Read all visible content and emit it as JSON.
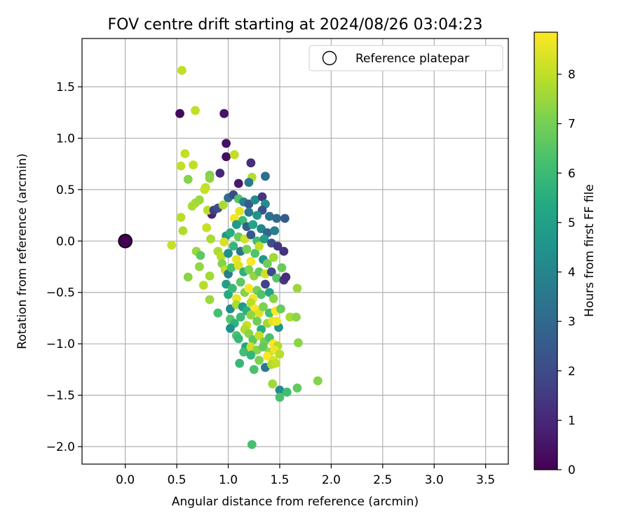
{
  "chart_data": {
    "type": "scatter",
    "title": "FOV centre drift starting at 2024/08/26 03:04:23",
    "xlabel": "Angular distance from reference (arcmin)",
    "ylabel": "Rotation from reference (arcmin)",
    "xlim": [
      -0.42,
      3.72
    ],
    "ylim": [
      -2.17,
      1.97
    ],
    "xticks": [
      0.0,
      0.5,
      1.0,
      1.5,
      2.0,
      2.5,
      3.0,
      3.5
    ],
    "xtick_labels": [
      "0.0",
      "0.5",
      "1.0",
      "1.5",
      "2.0",
      "2.5",
      "3.0",
      "3.5"
    ],
    "yticks": [
      -2.0,
      -1.5,
      -1.0,
      -0.5,
      0.0,
      0.5,
      1.0,
      1.5
    ],
    "ytick_labels": [
      "−2.0",
      "−1.5",
      "−1.0",
      "−0.5",
      "0.0",
      "0.5",
      "1.0",
      "1.5"
    ],
    "grid": true,
    "legend": {
      "position": "top-right",
      "label": "Reference platepar"
    },
    "reference_point": {
      "x": 0.0,
      "y": 0.0
    },
    "colorbar": {
      "label": "Hours from first FF file",
      "min": 0,
      "max": 8.85,
      "ticks": [
        0,
        1,
        2,
        3,
        4,
        5,
        6,
        7,
        8
      ],
      "tick_labels": [
        "0",
        "1",
        "2",
        "3",
        "4",
        "5",
        "6",
        "7",
        "8"
      ],
      "colormap": "viridis"
    },
    "points": [
      {
        "x": 0.55,
        "y": 1.66,
        "h": 8.0
      },
      {
        "x": 0.53,
        "y": 1.24,
        "h": 0.2
      },
      {
        "x": 0.68,
        "y": 1.27,
        "h": 8.0
      },
      {
        "x": 0.96,
        "y": 1.24,
        "h": 0.5
      },
      {
        "x": 0.98,
        "y": 0.95,
        "h": 0.4
      },
      {
        "x": 0.98,
        "y": 0.82,
        "h": 0.3
      },
      {
        "x": 1.06,
        "y": 0.84,
        "h": 8.0
      },
      {
        "x": 0.58,
        "y": 0.85,
        "h": 8.0
      },
      {
        "x": 0.54,
        "y": 0.73,
        "h": 8.0
      },
      {
        "x": 0.66,
        "y": 0.74,
        "h": 8.0
      },
      {
        "x": 0.61,
        "y": 0.6,
        "h": 7.2
      },
      {
        "x": 0.82,
        "y": 0.64,
        "h": 7.1
      },
      {
        "x": 0.82,
        "y": 0.61,
        "h": 7.3
      },
      {
        "x": 0.92,
        "y": 0.66,
        "h": 1.0
      },
      {
        "x": 1.1,
        "y": 0.56,
        "h": 0.6
      },
      {
        "x": 1.22,
        "y": 0.76,
        "h": 1.2
      },
      {
        "x": 1.23,
        "y": 0.62,
        "h": 7.8
      },
      {
        "x": 1.2,
        "y": 0.57,
        "h": 3.5
      },
      {
        "x": 1.36,
        "y": 0.63,
        "h": 3.2
      },
      {
        "x": 0.78,
        "y": 0.52,
        "h": 8.0
      },
      {
        "x": 0.77,
        "y": 0.5,
        "h": 8.1
      },
      {
        "x": 0.72,
        "y": 0.4,
        "h": 7.5
      },
      {
        "x": 0.68,
        "y": 0.37,
        "h": 7.6
      },
      {
        "x": 0.65,
        "y": 0.34,
        "h": 7.7
      },
      {
        "x": 0.84,
        "y": 0.26,
        "h": 0.8
      },
      {
        "x": 0.8,
        "y": 0.3,
        "h": 7.9
      },
      {
        "x": 0.86,
        "y": 0.3,
        "h": 1.6
      },
      {
        "x": 0.9,
        "y": 0.32,
        "h": 2.1
      },
      {
        "x": 0.95,
        "y": 0.35,
        "h": 7.7
      },
      {
        "x": 1.0,
        "y": 0.42,
        "h": 3.1
      },
      {
        "x": 1.05,
        "y": 0.45,
        "h": 2.0
      },
      {
        "x": 1.1,
        "y": 0.41,
        "h": 6.4
      },
      {
        "x": 1.15,
        "y": 0.38,
        "h": 3.9
      },
      {
        "x": 1.2,
        "y": 0.36,
        "h": 2.5
      },
      {
        "x": 1.26,
        "y": 0.4,
        "h": 4.2
      },
      {
        "x": 1.33,
        "y": 0.43,
        "h": 1.4
      },
      {
        "x": 1.36,
        "y": 0.36,
        "h": 4.3
      },
      {
        "x": 1.33,
        "y": 0.3,
        "h": 2.2
      },
      {
        "x": 1.11,
        "y": 0.29,
        "h": 8.5
      },
      {
        "x": 1.14,
        "y": 0.2,
        "h": 6.0
      },
      {
        "x": 1.06,
        "y": 0.22,
        "h": 8.7
      },
      {
        "x": 1.2,
        "y": 0.28,
        "h": 3.6
      },
      {
        "x": 1.28,
        "y": 0.25,
        "h": 4.5
      },
      {
        "x": 1.4,
        "y": 0.24,
        "h": 3.3
      },
      {
        "x": 1.47,
        "y": 0.22,
        "h": 3.0
      },
      {
        "x": 1.55,
        "y": 0.22,
        "h": 2.5
      },
      {
        "x": 1.08,
        "y": 0.16,
        "h": 4.8
      },
      {
        "x": 1.18,
        "y": 0.14,
        "h": 2.7
      },
      {
        "x": 1.24,
        "y": 0.16,
        "h": 5.2
      },
      {
        "x": 1.32,
        "y": 0.12,
        "h": 4.0
      },
      {
        "x": 1.38,
        "y": 0.08,
        "h": 2.9
      },
      {
        "x": 1.45,
        "y": 0.1,
        "h": 3.7
      },
      {
        "x": 0.54,
        "y": 0.23,
        "h": 7.9
      },
      {
        "x": 0.79,
        "y": 0.13,
        "h": 8.1
      },
      {
        "x": 0.56,
        "y": 0.1,
        "h": 7.8
      },
      {
        "x": 0.83,
        "y": 0.02,
        "h": 7.7
      },
      {
        "x": 0.98,
        "y": 0.05,
        "h": 4.6
      },
      {
        "x": 1.02,
        "y": 0.08,
        "h": 5.5
      },
      {
        "x": 1.1,
        "y": 0.04,
        "h": 6.8
      },
      {
        "x": 1.16,
        "y": 0.02,
        "h": 8.2
      },
      {
        "x": 1.22,
        "y": 0.06,
        "h": 2.4
      },
      {
        "x": 1.28,
        "y": 0.0,
        "h": 6.1
      },
      {
        "x": 1.35,
        "y": 0.02,
        "h": 4.9
      },
      {
        "x": 1.42,
        "y": -0.02,
        "h": 2.2
      },
      {
        "x": 1.48,
        "y": -0.05,
        "h": 1.5
      },
      {
        "x": 1.54,
        "y": -0.1,
        "h": 1.3
      },
      {
        "x": 0.45,
        "y": -0.04,
        "h": 8.1
      },
      {
        "x": 0.69,
        "y": -0.1,
        "h": 7.5
      },
      {
        "x": 0.73,
        "y": -0.14,
        "h": 6.6
      },
      {
        "x": 0.9,
        "y": -0.1,
        "h": 7.7
      },
      {
        "x": 0.93,
        "y": -0.15,
        "h": 7.9
      },
      {
        "x": 0.96,
        "y": -0.01,
        "h": 8.3
      },
      {
        "x": 1.0,
        "y": -0.12,
        "h": 4.4
      },
      {
        "x": 1.05,
        "y": -0.05,
        "h": 5.8
      },
      {
        "x": 1.08,
        "y": -0.18,
        "h": 8.5
      },
      {
        "x": 1.12,
        "y": -0.1,
        "h": 3.4
      },
      {
        "x": 1.18,
        "y": -0.08,
        "h": 7.0
      },
      {
        "x": 1.22,
        "y": -0.2,
        "h": 8.8
      },
      {
        "x": 1.26,
        "y": -0.12,
        "h": 6.4
      },
      {
        "x": 1.3,
        "y": -0.05,
        "h": 8.0
      },
      {
        "x": 1.34,
        "y": -0.18,
        "h": 4.7
      },
      {
        "x": 1.38,
        "y": -0.22,
        "h": 6.9
      },
      {
        "x": 1.44,
        "y": -0.16,
        "h": 7.6
      },
      {
        "x": 1.52,
        "y": -0.26,
        "h": 6.8
      },
      {
        "x": 0.94,
        "y": -0.22,
        "h": 7.2
      },
      {
        "x": 0.97,
        "y": -0.28,
        "h": 8.0
      },
      {
        "x": 1.0,
        "y": -0.32,
        "h": 3.8
      },
      {
        "x": 1.03,
        "y": -0.26,
        "h": 6.3
      },
      {
        "x": 1.1,
        "y": -0.24,
        "h": 8.4
      },
      {
        "x": 1.15,
        "y": -0.3,
        "h": 5.6
      },
      {
        "x": 1.2,
        "y": -0.28,
        "h": 7.1
      },
      {
        "x": 1.25,
        "y": -0.34,
        "h": 7.4
      },
      {
        "x": 1.3,
        "y": -0.3,
        "h": 6.7
      },
      {
        "x": 1.36,
        "y": -0.32,
        "h": 8.2
      },
      {
        "x": 1.42,
        "y": -0.3,
        "h": 2.0
      },
      {
        "x": 1.47,
        "y": -0.36,
        "h": 6.5
      },
      {
        "x": 1.54,
        "y": -0.38,
        "h": 1.5
      },
      {
        "x": 1.56,
        "y": -0.35,
        "h": 1.1
      },
      {
        "x": 0.61,
        "y": -0.35,
        "h": 7.3
      },
      {
        "x": 0.72,
        "y": -0.25,
        "h": 7.4
      },
      {
        "x": 0.82,
        "y": -0.34,
        "h": 7.6
      },
      {
        "x": 0.76,
        "y": -0.43,
        "h": 7.9
      },
      {
        "x": 0.82,
        "y": -0.57,
        "h": 7.5
      },
      {
        "x": 0.9,
        "y": -0.7,
        "h": 6.2
      },
      {
        "x": 0.98,
        "y": -0.42,
        "h": 5.0
      },
      {
        "x": 1.0,
        "y": -0.52,
        "h": 5.4
      },
      {
        "x": 1.04,
        "y": -0.46,
        "h": 5.9
      },
      {
        "x": 1.08,
        "y": -0.56,
        "h": 8.6
      },
      {
        "x": 1.12,
        "y": -0.4,
        "h": 6.6
      },
      {
        "x": 1.16,
        "y": -0.5,
        "h": 7.2
      },
      {
        "x": 1.2,
        "y": -0.46,
        "h": 8.8
      },
      {
        "x": 1.24,
        "y": -0.56,
        "h": 8.7
      },
      {
        "x": 1.28,
        "y": -0.48,
        "h": 7.0
      },
      {
        "x": 1.32,
        "y": -0.52,
        "h": 6.4
      },
      {
        "x": 1.36,
        "y": -0.42,
        "h": 1.8
      },
      {
        "x": 1.4,
        "y": -0.5,
        "h": 5.2
      },
      {
        "x": 1.44,
        "y": -0.56,
        "h": 7.3
      },
      {
        "x": 1.67,
        "y": -0.46,
        "h": 7.5
      },
      {
        "x": 1.02,
        "y": -0.66,
        "h": 4.2
      },
      {
        "x": 1.08,
        "y": -0.62,
        "h": 7.7
      },
      {
        "x": 1.14,
        "y": -0.64,
        "h": 4.8
      },
      {
        "x": 1.18,
        "y": -0.68,
        "h": 5.6
      },
      {
        "x": 1.22,
        "y": -0.6,
        "h": 7.9
      },
      {
        "x": 1.26,
        "y": -0.66,
        "h": 8.8
      },
      {
        "x": 1.3,
        "y": -0.7,
        "h": 8.4
      },
      {
        "x": 1.34,
        "y": -0.64,
        "h": 7.1
      },
      {
        "x": 1.4,
        "y": -0.7,
        "h": 6.2
      },
      {
        "x": 1.46,
        "y": -0.68,
        "h": 8.9
      },
      {
        "x": 1.51,
        "y": -0.66,
        "h": 6.8
      },
      {
        "x": 1.6,
        "y": -0.74,
        "h": 7.7
      },
      {
        "x": 1.66,
        "y": -0.74,
        "h": 7.3
      },
      {
        "x": 1.02,
        "y": -0.76,
        "h": 6.5
      },
      {
        "x": 1.06,
        "y": -0.8,
        "h": 5.7
      },
      {
        "x": 1.12,
        "y": -0.74,
        "h": 6.0
      },
      {
        "x": 1.18,
        "y": -0.82,
        "h": 8.1
      },
      {
        "x": 1.22,
        "y": -0.72,
        "h": 7.4
      },
      {
        "x": 1.28,
        "y": -0.78,
        "h": 6.9
      },
      {
        "x": 1.32,
        "y": -0.86,
        "h": 5.5
      },
      {
        "x": 1.38,
        "y": -0.8,
        "h": 7.6
      },
      {
        "x": 1.43,
        "y": -0.78,
        "h": 8.5
      },
      {
        "x": 1.49,
        "y": -0.84,
        "h": 4.6
      },
      {
        "x": 1.47,
        "y": -0.78,
        "h": 8.7
      },
      {
        "x": 1.02,
        "y": -0.85,
        "h": 4.4
      },
      {
        "x": 1.08,
        "y": -0.92,
        "h": 6.3
      },
      {
        "x": 1.16,
        "y": -0.86,
        "h": 7.8
      },
      {
        "x": 1.2,
        "y": -0.9,
        "h": 7.3
      },
      {
        "x": 1.24,
        "y": -0.96,
        "h": 6.6
      },
      {
        "x": 1.3,
        "y": -0.92,
        "h": 8.0
      },
      {
        "x": 1.35,
        "y": -0.98,
        "h": 7.0
      },
      {
        "x": 1.4,
        "y": -0.94,
        "h": 6.3
      },
      {
        "x": 1.44,
        "y": -1.0,
        "h": 8.9
      },
      {
        "x": 1.48,
        "y": -1.02,
        "h": 7.8
      },
      {
        "x": 1.68,
        "y": -0.99,
        "h": 7.3
      },
      {
        "x": 1.1,
        "y": -0.95,
        "h": 5.9
      },
      {
        "x": 1.17,
        "y": -1.03,
        "h": 5.1
      },
      {
        "x": 1.22,
        "y": -1.03,
        "h": 8.2
      },
      {
        "x": 1.28,
        "y": -1.06,
        "h": 7.2
      },
      {
        "x": 1.34,
        "y": -1.03,
        "h": 6.7
      },
      {
        "x": 1.4,
        "y": -1.08,
        "h": 7.5
      },
      {
        "x": 1.45,
        "y": -1.06,
        "h": 8.6
      },
      {
        "x": 1.38,
        "y": -1.12,
        "h": 8.8
      },
      {
        "x": 1.44,
        "y": -1.16,
        "h": 8.4
      },
      {
        "x": 1.5,
        "y": -1.1,
        "h": 7.9
      },
      {
        "x": 1.15,
        "y": -1.08,
        "h": 6.1
      },
      {
        "x": 1.22,
        "y": -1.11,
        "h": 5.8
      },
      {
        "x": 1.3,
        "y": -1.16,
        "h": 7.1
      },
      {
        "x": 1.36,
        "y": -1.23,
        "h": 3.5
      },
      {
        "x": 1.42,
        "y": -1.2,
        "h": 7.8
      },
      {
        "x": 1.46,
        "y": -1.19,
        "h": 8.0
      },
      {
        "x": 1.11,
        "y": -1.19,
        "h": 5.9
      },
      {
        "x": 1.25,
        "y": -1.25,
        "h": 6.3
      },
      {
        "x": 1.43,
        "y": -1.39,
        "h": 7.6
      },
      {
        "x": 1.5,
        "y": -1.45,
        "h": 4.3
      },
      {
        "x": 1.57,
        "y": -1.47,
        "h": 6.1
      },
      {
        "x": 1.5,
        "y": -1.52,
        "h": 6.3
      },
      {
        "x": 1.67,
        "y": -1.43,
        "h": 6.7
      },
      {
        "x": 1.87,
        "y": -1.36,
        "h": 7.2
      },
      {
        "x": 1.23,
        "y": -1.98,
        "h": 6.2
      }
    ]
  }
}
